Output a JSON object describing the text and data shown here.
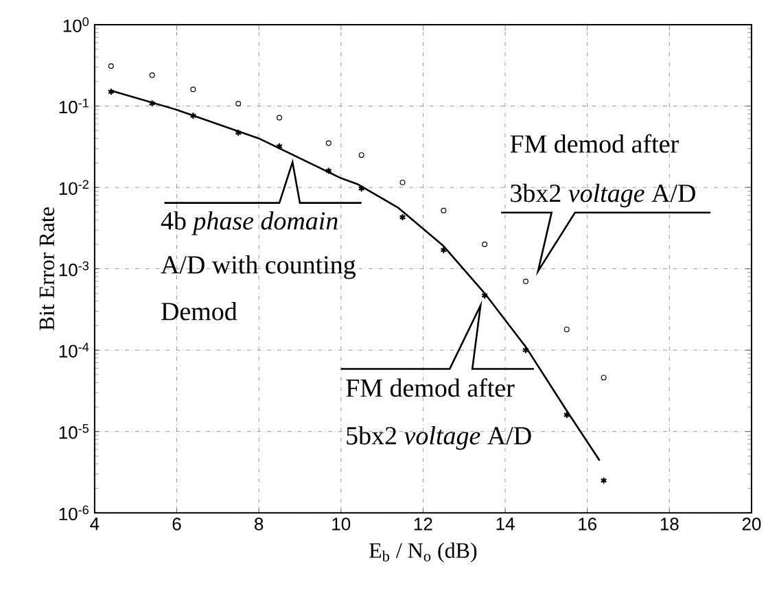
{
  "chart_data": {
    "type": "scatter",
    "xlabel": "E$_{b}$ / N$_{o}$ (dB)",
    "ylabel": "Bit Error Rate",
    "log": "y",
    "grid": true,
    "xlim": [
      4,
      20
    ],
    "xticks": [
      4,
      6,
      8,
      10,
      12,
      14,
      16,
      18,
      20
    ],
    "ylim": [
      1e-06,
      1
    ],
    "yticks": [
      {
        "value": 1e-06,
        "label": "10$^{-6}$"
      },
      {
        "value": 1e-05,
        "label": "10$^{-5}$"
      },
      {
        "value": 0.0001,
        "label": "10$^{-4}$"
      },
      {
        "value": 0.001,
        "label": "10$^{-3}$"
      },
      {
        "value": 0.01,
        "label": "10$^{-2}$"
      },
      {
        "value": 0.1,
        "label": "10$^{-1}$"
      },
      {
        "value": 1,
        "label": "10$^{0}$"
      }
    ],
    "series": [
      {
        "marker": "circle",
        "color": "#000000",
        "x": [
          4.4,
          5.4,
          6.4,
          7.5,
          8.5,
          9.7,
          10.5,
          11.5,
          12.5,
          13.5,
          14.5,
          15.5,
          16.4
        ],
        "values": [
          0.31,
          0.24,
          0.16,
          0.107,
          0.072,
          0.035,
          0.025,
          0.0115,
          0.0052,
          0.002,
          0.0007,
          0.00018,
          4.6e-05
        ]
      },
      {
        "marker": "cross",
        "color": "#000000",
        "x": [
          4.4,
          5.4,
          6.4,
          7.5,
          8.5,
          9.7,
          10.5,
          11.5,
          12.5,
          13.5,
          14.5,
          15.5,
          16.4
        ],
        "values": [
          0.15,
          0.108,
          0.076,
          0.047,
          0.032,
          0.016,
          0.0097,
          0.0043,
          0.0017,
          0.00047,
          0.0001,
          1.6e-05,
          2.5e-06
        ]
      },
      {
        "type": "line",
        "marker": "none",
        "color": "#000000",
        "x": [
          4.4,
          6,
          8,
          10,
          10.4,
          11.4,
          12.5,
          13.5,
          14.5,
          15.5,
          16.3
        ],
        "values": [
          0.155,
          0.09,
          0.04,
          0.013,
          0.011,
          0.0056,
          0.0019,
          0.0005,
          0.00011,
          1.8e-05,
          4.4e-06
        ]
      }
    ],
    "annotations": [
      "4b *phase domain*",
      "A/D with counting",
      "Demod",
      "FM demod after",
      "5bx2 *voltage* A/D",
      "FM demod after",
      "3bx2 *voltage* A/D"
    ]
  }
}
